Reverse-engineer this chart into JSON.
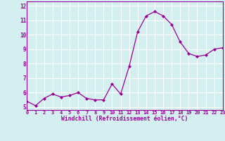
{
  "x": [
    0,
    1,
    2,
    3,
    4,
    5,
    6,
    7,
    8,
    9,
    10,
    11,
    12,
    13,
    14,
    15,
    16,
    17,
    18,
    19,
    20,
    21,
    22,
    23
  ],
  "y": [
    5.4,
    5.1,
    5.6,
    5.9,
    5.7,
    5.8,
    6.0,
    5.6,
    5.5,
    5.5,
    6.6,
    5.9,
    7.8,
    10.2,
    11.3,
    11.6,
    11.3,
    10.7,
    9.5,
    8.7,
    8.5,
    8.6,
    9.0,
    9.1
  ],
  "line_color": "#990099",
  "marker": "D",
  "marker_size": 2,
  "bg_color": "#d4efef",
  "grid_color": "#ffffff",
  "xlabel": "Windchill (Refroidissement éolien,°C)",
  "ylabel_ticks": [
    5,
    6,
    7,
    8,
    9,
    10,
    11,
    12
  ],
  "xticks": [
    0,
    1,
    2,
    3,
    4,
    5,
    6,
    7,
    8,
    9,
    10,
    11,
    12,
    13,
    14,
    15,
    16,
    17,
    18,
    19,
    20,
    21,
    22,
    23
  ],
  "xlim": [
    0,
    23
  ],
  "ylim": [
    4.8,
    12.3
  ],
  "tick_color": "#990099",
  "label_color": "#990099",
  "spine_color": "#990099",
  "xtick_fontsize": 5.0,
  "ytick_fontsize": 5.5,
  "xlabel_fontsize": 5.8
}
